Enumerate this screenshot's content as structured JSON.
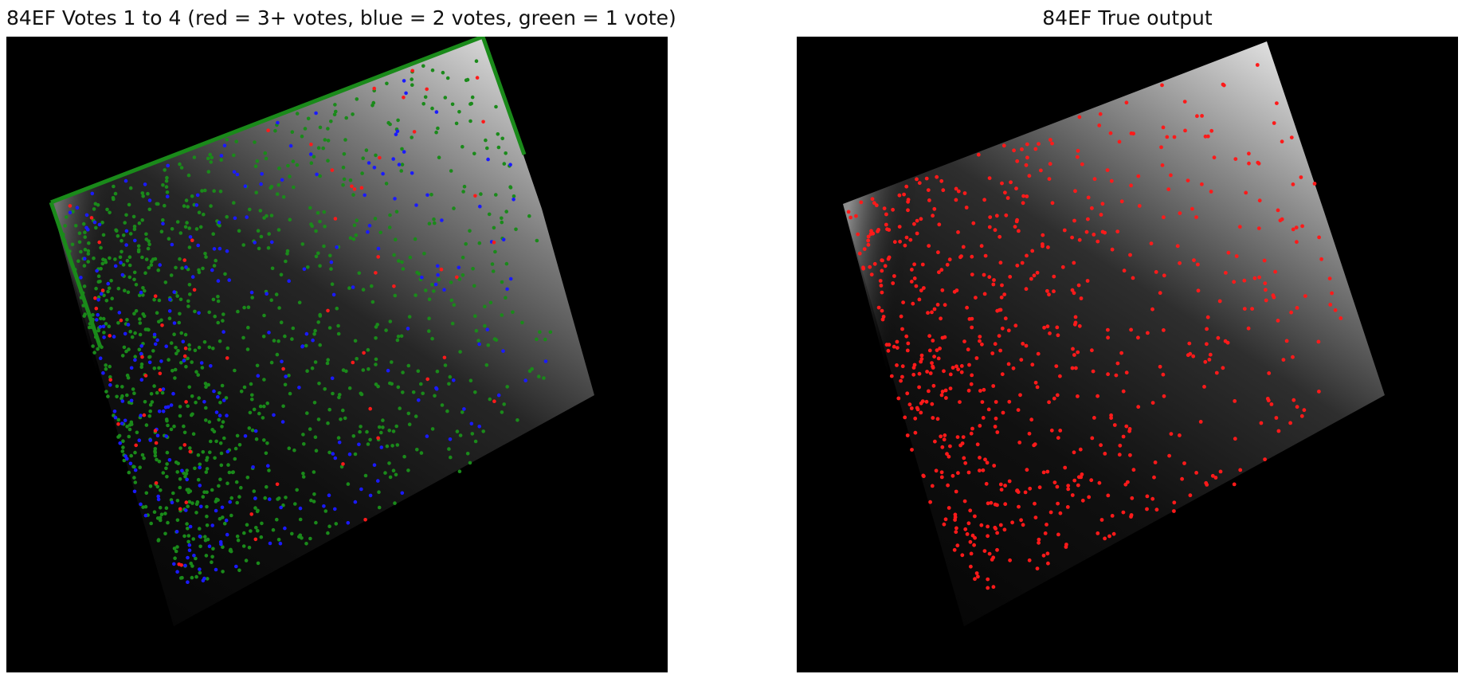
{
  "figure": {
    "left": {
      "title": "84EF Votes 1 to 4 (red = 3+ votes, blue = 2 votes, green = 1 vote)",
      "legend_colors": {
        "three_plus_votes": "#ff1a1a",
        "two_votes": "#1a1aff",
        "one_vote": "#1a8a1a"
      },
      "marker_counts": {
        "green": 1000,
        "blue": 260,
        "red": 70
      }
    },
    "right": {
      "title": "84EF True output",
      "marker_color": "#ff1a1a",
      "marker_count": 700
    }
  }
}
